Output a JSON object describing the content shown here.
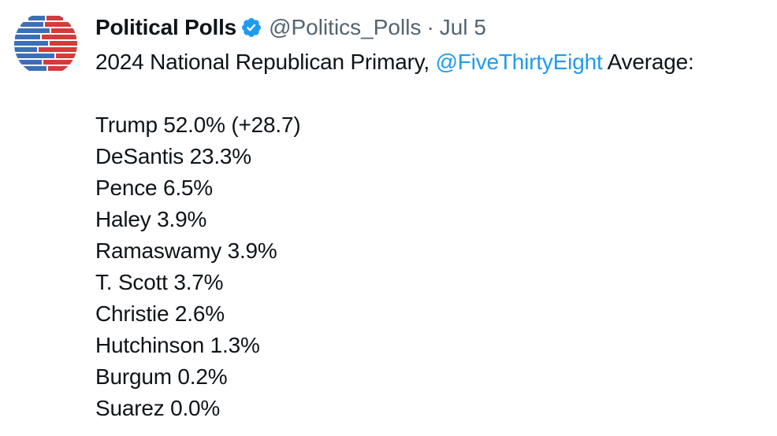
{
  "account": {
    "display_name": "Political Polls",
    "handle": "@Politics_Polls",
    "separator": "·",
    "date": "Jul 5",
    "verified_icon": "verified-badge-icon",
    "avatar_icon": "stacked-bars-logo"
  },
  "colors": {
    "text": "#0f1419",
    "secondary": "#536471",
    "link": "#1d9bf0",
    "verified": "#1d9bf0",
    "avatar_blue": "#3d6fb8",
    "avatar_red": "#d63a3a"
  },
  "tweet": {
    "headline_prefix": "2024 National Republican Primary, ",
    "mention": "@FiveThirtyEight",
    "headline_suffix": " Average:",
    "results": [
      "Trump 52.0% (+28.7)",
      "DeSantis 23.3%",
      "Pence 6.5%",
      "Haley 3.9%",
      "Ramaswamy 3.9%",
      "T. Scott 3.7%",
      "Christie 2.6%",
      "Hutchinson 1.3%",
      "Burgum 0.2%",
      "Suarez 0.0%"
    ]
  }
}
